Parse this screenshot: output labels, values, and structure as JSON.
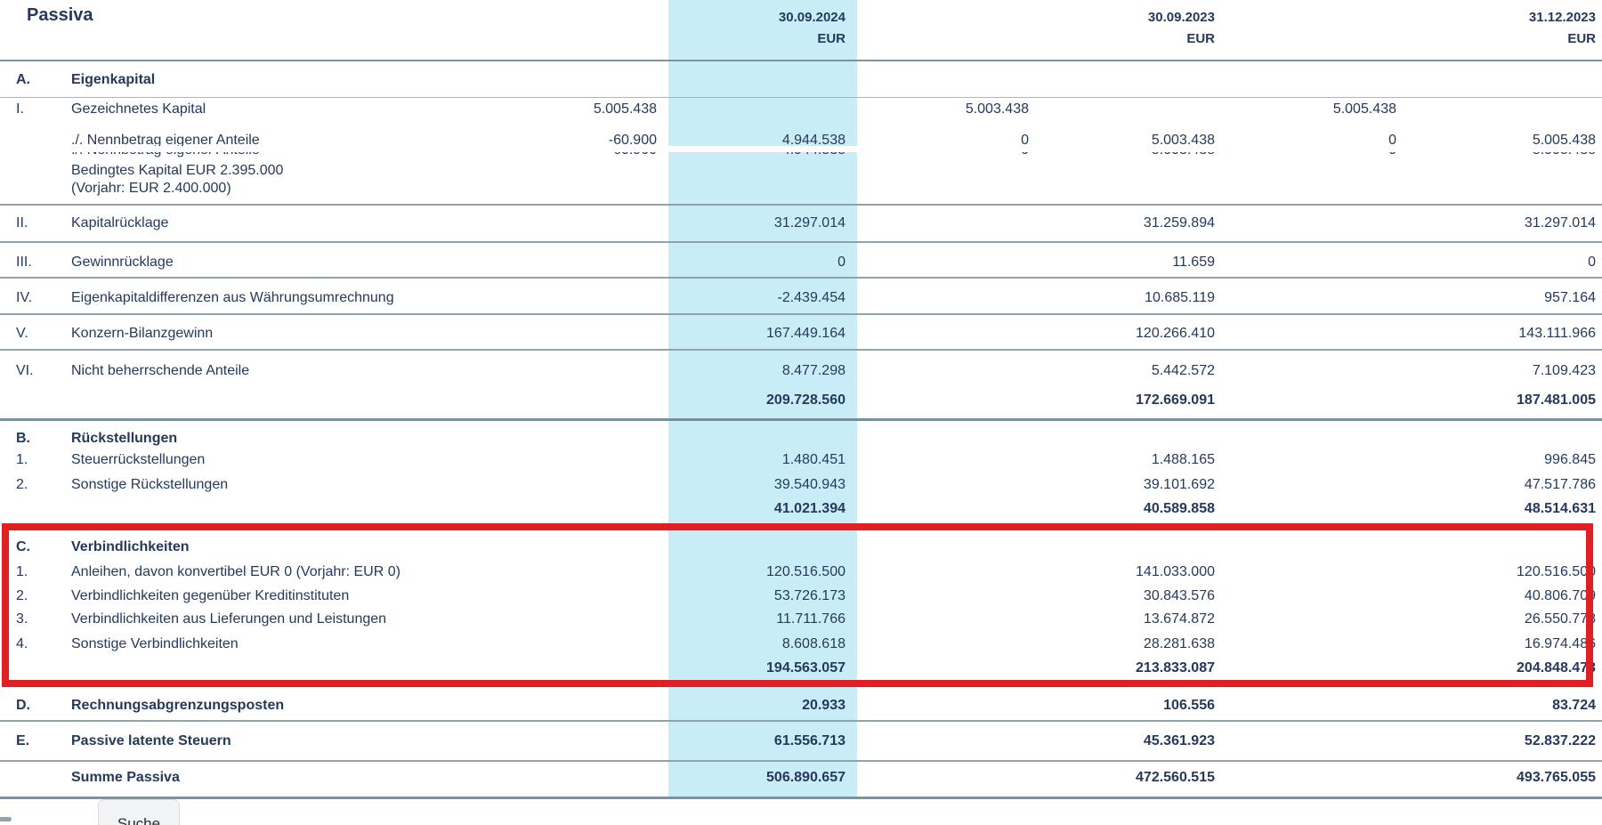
{
  "header": {
    "title": "Passiva",
    "columns": [
      {
        "date": "30.09.2024",
        "currency": "EUR"
      },
      {
        "date": "30.09.2023",
        "currency": "EUR"
      },
      {
        "date": "31.12.2023",
        "currency": "EUR"
      }
    ]
  },
  "table": {
    "rows": [
      {
        "id": "a",
        "letter": "A.",
        "label": "Eigenkapital",
        "bold": true
      },
      {
        "id": "i",
        "letter": "I.",
        "label": "Gezeichnetes Kapital",
        "values": {
          "sub1": "5.005.438",
          "sub2": "5.003.438",
          "sub3": "5.005.438"
        }
      },
      {
        "id": "minus",
        "letter": "",
        "label": "./. Nennbetrag eigener Anteile",
        "strike": true,
        "values": {
          "sub1": "-60.900",
          "main1": "4.944.538",
          "sub2": "0",
          "main2": "5.003.438",
          "sub3": "0",
          "main3": "5.005.438"
        }
      },
      {
        "id": "bedingt",
        "letter": "",
        "label": "Bedingtes Kapital EUR 2.395.000",
        "label2": "(Vorjahr: EUR 2.400.000)"
      },
      {
        "id": "ii",
        "letter": "II.",
        "label": "Kapitalrücklage",
        "values": {
          "main1": "31.297.014",
          "main2": "31.259.894",
          "main3": "31.297.014"
        }
      },
      {
        "id": "iii",
        "letter": "III.",
        "label": "Gewinnrücklage",
        "values": {
          "main1": "0",
          "main2": "11.659",
          "main3": "0"
        }
      },
      {
        "id": "iv",
        "letter": "IV.",
        "label": "Eigenkapitaldifferenzen aus Währungsumrechnung",
        "values": {
          "main1": "-2.439.454",
          "main2": "10.685.119",
          "main3": "957.164"
        }
      },
      {
        "id": "v",
        "letter": "V.",
        "label": "Konzern-Bilanzgewinn",
        "values": {
          "main1": "167.449.164",
          "main2": "120.266.410",
          "main3": "143.111.966"
        }
      },
      {
        "id": "vi",
        "letter": "VI.",
        "label": "Nicht beherrschende Anteile",
        "values": {
          "main1": "8.477.298",
          "main2": "5.442.572",
          "main3": "7.109.423"
        }
      },
      {
        "id": "sum-a",
        "bold": true,
        "values": {
          "main1": "209.728.560",
          "main2": "172.669.091",
          "main3": "187.481.005"
        }
      },
      {
        "id": "b",
        "letter": "B.",
        "label": "Rückstellungen",
        "bold": true
      },
      {
        "id": "b1",
        "letter": "1.",
        "label": "Steuerrückstellungen",
        "values": {
          "main1": "1.480.451",
          "main2": "1.488.165",
          "main3": "996.845"
        }
      },
      {
        "id": "b2",
        "letter": "2.",
        "label": "Sonstige Rückstellungen",
        "values": {
          "main1": "39.540.943",
          "main2": "39.101.692",
          "main3": "47.517.786"
        }
      },
      {
        "id": "sum-b",
        "bold": true,
        "values": {
          "main1": "41.021.394",
          "main2": "40.589.858",
          "main3": "48.514.631"
        }
      },
      {
        "id": "c",
        "letter": "C.",
        "label": "Verbindlichkeiten",
        "bold": true
      },
      {
        "id": "c1",
        "letter": "1.",
        "label": "Anleihen, davon konvertibel EUR 0 (Vorjahr: EUR 0)",
        "values": {
          "main1": "120.516.500",
          "main2": "141.033.000",
          "main3": "120.516.500"
        }
      },
      {
        "id": "c2",
        "letter": "2.",
        "label": "Verbindlichkeiten gegenüber Kreditinstituten",
        "values": {
          "main1": "53.726.173",
          "main2": "30.843.576",
          "main3": "40.806.709"
        }
      },
      {
        "id": "c3",
        "letter": "3.",
        "label": "Verbindlichkeiten aus Lieferungen und Leistungen",
        "values": {
          "main1": "11.711.766",
          "main2": "13.674.872",
          "main3": "26.550.778"
        }
      },
      {
        "id": "c4",
        "letter": "4.",
        "label": "Sonstige Verbindlichkeiten",
        "values": {
          "main1": "8.608.618",
          "main2": "28.281.638",
          "main3": "16.974.486"
        }
      },
      {
        "id": "sum-c",
        "bold": true,
        "values": {
          "main1": "194.563.057",
          "main2": "213.833.087",
          "main3": "204.848.473"
        }
      },
      {
        "id": "d",
        "letter": "D.",
        "label": "Rechnungsabgrenzungsposten",
        "bold": true,
        "values": {
          "main1": "20.933",
          "main2": "106.556",
          "main3": "83.724"
        }
      },
      {
        "id": "e",
        "letter": "E.",
        "label": "Passive latente Steuern",
        "bold": true,
        "values": {
          "main1": "61.556.713",
          "main2": "45.361.923",
          "main3": "52.837.222"
        }
      },
      {
        "id": "summe",
        "letter": "",
        "label": "Summe Passiva",
        "bold": true,
        "values": {
          "main1": "506.890.657",
          "main2": "472.560.515",
          "main3": "493.765.055"
        }
      }
    ]
  },
  "footer": {
    "search_label": "Suche"
  },
  "colors": {
    "text": "#24395c",
    "accent_band": "#c9edf7",
    "highlight_box_red": "#e01f24",
    "divider": "#8fa2b0"
  }
}
